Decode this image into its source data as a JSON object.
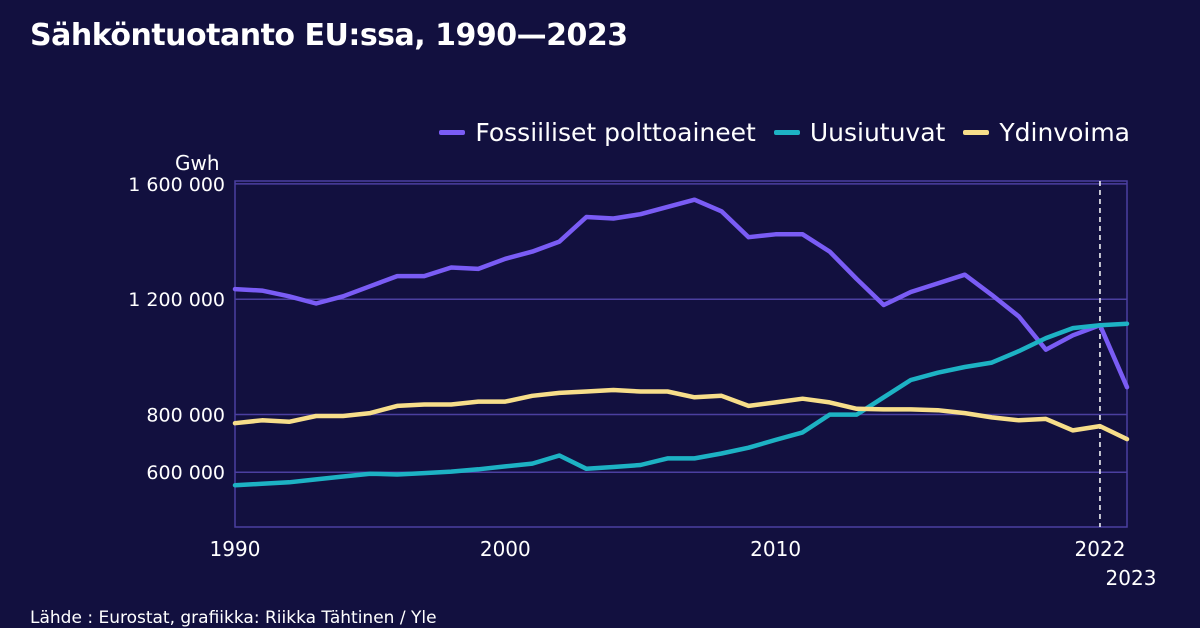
{
  "title": "Sähköntuotanto EU:ssa, 1990—2023",
  "unit_label": "Gwh",
  "source": "Lähde : Eurostat, grafiikka: Riikka Tähtinen / Yle",
  "colors": {
    "background": "#12103f",
    "grid": "#4b3fa0",
    "fossil": "#7a5cf5",
    "renewable": "#1db2c4",
    "nuclear": "#f7de8a"
  },
  "chart_data": {
    "type": "line",
    "title": "Sähköntuotanto EU:ssa, 1990—2023",
    "ylabel": "Gwh",
    "xlabel": "",
    "x": [
      1990,
      1991,
      1992,
      1993,
      1994,
      1995,
      1996,
      1997,
      1998,
      1999,
      2000,
      2001,
      2002,
      2003,
      2004,
      2005,
      2006,
      2007,
      2008,
      2009,
      2010,
      2011,
      2012,
      2013,
      2014,
      2015,
      2016,
      2017,
      2018,
      2019,
      2020,
      2021,
      2022,
      2023
    ],
    "xlim": [
      1990,
      2023
    ],
    "ylim": [
      410000,
      1610000
    ],
    "yticks": [
      600000,
      800000,
      1200000,
      1600000
    ],
    "ytick_labels": [
      "600 000",
      "800 000",
      "1 200 000",
      "1 600 000"
    ],
    "xticks": [
      1990,
      2000,
      2010,
      2022,
      2023
    ],
    "xtick_labels": [
      "1990",
      "2000",
      "2010",
      "2022",
      "2023"
    ],
    "marker_year": 2022,
    "legend_position": "top-right",
    "grid": true,
    "series": [
      {
        "name": "Fossiiliset polttoaineet",
        "color_key": "fossil",
        "values": [
          1235000,
          1230000,
          1210000,
          1185000,
          1210000,
          1245000,
          1280000,
          1280000,
          1310000,
          1305000,
          1340000,
          1365000,
          1400000,
          1485000,
          1480000,
          1495000,
          1520000,
          1545000,
          1505000,
          1415000,
          1425000,
          1425000,
          1365000,
          1270000,
          1180000,
          1225000,
          1255000,
          1285000,
          1215000,
          1140000,
          1025000,
          1075000,
          1110000,
          895000
        ]
      },
      {
        "name": "Uusiutuvat",
        "color_key": "renewable",
        "values": [
          555000,
          560000,
          565000,
          575000,
          585000,
          595000,
          592000,
          597000,
          602000,
          610000,
          620000,
          630000,
          658000,
          612000,
          618000,
          625000,
          648000,
          648000,
          665000,
          685000,
          712000,
          738000,
          800000,
          800000,
          860000,
          920000,
          945000,
          965000,
          980000,
          1020000,
          1065000,
          1100000,
          1110000,
          1115000
        ]
      },
      {
        "name": "Ydinvoima",
        "color_key": "nuclear",
        "values": [
          770000,
          780000,
          775000,
          795000,
          795000,
          805000,
          830000,
          835000,
          835000,
          845000,
          845000,
          865000,
          875000,
          880000,
          885000,
          880000,
          880000,
          860000,
          865000,
          830000,
          842000,
          855000,
          842000,
          820000,
          818000,
          818000,
          815000,
          805000,
          790000,
          780000,
          785000,
          745000,
          760000,
          715000
        ]
      }
    ]
  }
}
